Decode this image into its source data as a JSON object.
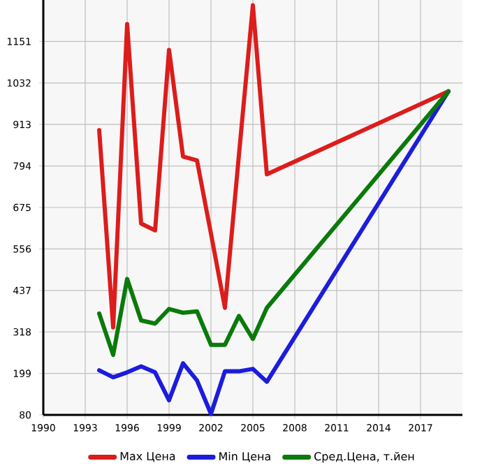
{
  "chart_data": {
    "type": "line",
    "x": [
      1994,
      1995,
      1996,
      1997,
      1998,
      1999,
      2000,
      2001,
      2002,
      2003,
      2004,
      2005,
      2006,
      2019
    ],
    "series": [
      {
        "name": "Max Цена",
        "color": "#dd1c1c",
        "values": [
          897,
          331,
          1201,
          629,
          609,
          1127,
          821,
          810,
          600,
          387,
          825,
          1255,
          770,
          1008
        ]
      },
      {
        "name": "Min Цена",
        "color": "#1c1cdd",
        "values": [
          208,
          188,
          202,
          219,
          202,
          122,
          228,
          179,
          83,
          205,
          205,
          212,
          175,
          1008
        ]
      },
      {
        "name": "Сред.Цена, т.йен",
        "color": "#0a7a0a",
        "values": [
          371,
          252,
          470,
          351,
          342,
          384,
          373,
          377,
          281,
          281,
          364,
          298,
          387,
          1008
        ]
      }
    ],
    "xlim": [
      1990,
      2020
    ],
    "xticks": [
      1990,
      1993,
      1996,
      1999,
      2002,
      2005,
      2008,
      2011,
      2014,
      2017
    ],
    "ylim": [
      80,
      1270
    ],
    "yticks": [
      80,
      199,
      318,
      437,
      556,
      675,
      794,
      913,
      1032,
      1151
    ],
    "grid": true,
    "legend": "bottom",
    "marker": "none",
    "line_style": "solid"
  }
}
